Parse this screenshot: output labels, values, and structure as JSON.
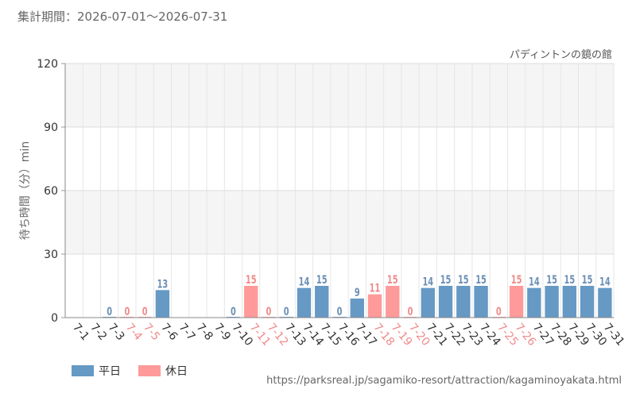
{
  "header": {
    "period_text": "集計期間：2026-07-01～2026-07-31",
    "attraction_name": "パディントンの鏡の館"
  },
  "legend": [
    {
      "label": "平日",
      "color": "#6699c4"
    },
    {
      "label": "休日",
      "color": "#ff9a9a"
    }
  ],
  "source_url": "https://parksreal.jp/sagamiko-resort/attraction/kagaminoyakata.html",
  "chart_data": {
    "type": "bar",
    "ylabel": "待ち時間（分）min",
    "ylim": [
      0,
      120
    ],
    "yticks": [
      0,
      30,
      60,
      90,
      120
    ],
    "grid": true,
    "colors": {
      "weekday": "#6699c4",
      "holiday": "#ff9a9a",
      "weekday_label": "#6b8fb5",
      "holiday_label": "#f08a8a"
    },
    "categories": [
      "7-1",
      "7-2",
      "7-3",
      "7-4",
      "7-5",
      "7-6",
      "7-7",
      "7-8",
      "7-9",
      "7-10",
      "7-11",
      "7-12",
      "7-13",
      "7-14",
      "7-15",
      "7-16",
      "7-17",
      "7-18",
      "7-19",
      "7-20",
      "7-21",
      "7-22",
      "7-23",
      "7-24",
      "7-25",
      "7-26",
      "7-27",
      "7-28",
      "7-29",
      "7-30",
      "7-31"
    ],
    "day_type": [
      "weekday",
      "weekday",
      "weekday",
      "holiday",
      "holiday",
      "weekday",
      "weekday",
      "weekday",
      "weekday",
      "weekday",
      "holiday",
      "holiday",
      "weekday",
      "weekday",
      "weekday",
      "weekday",
      "weekday",
      "holiday",
      "holiday",
      "holiday",
      "weekday",
      "weekday",
      "weekday",
      "weekday",
      "holiday",
      "holiday",
      "weekday",
      "weekday",
      "weekday",
      "weekday",
      "weekday"
    ],
    "values": [
      null,
      null,
      0,
      0,
      0,
      13,
      null,
      null,
      null,
      0,
      15,
      0,
      0,
      14,
      15,
      0,
      9,
      11,
      15,
      0,
      14,
      15,
      15,
      15,
      0,
      15,
      14,
      15,
      15,
      15,
      14
    ]
  }
}
